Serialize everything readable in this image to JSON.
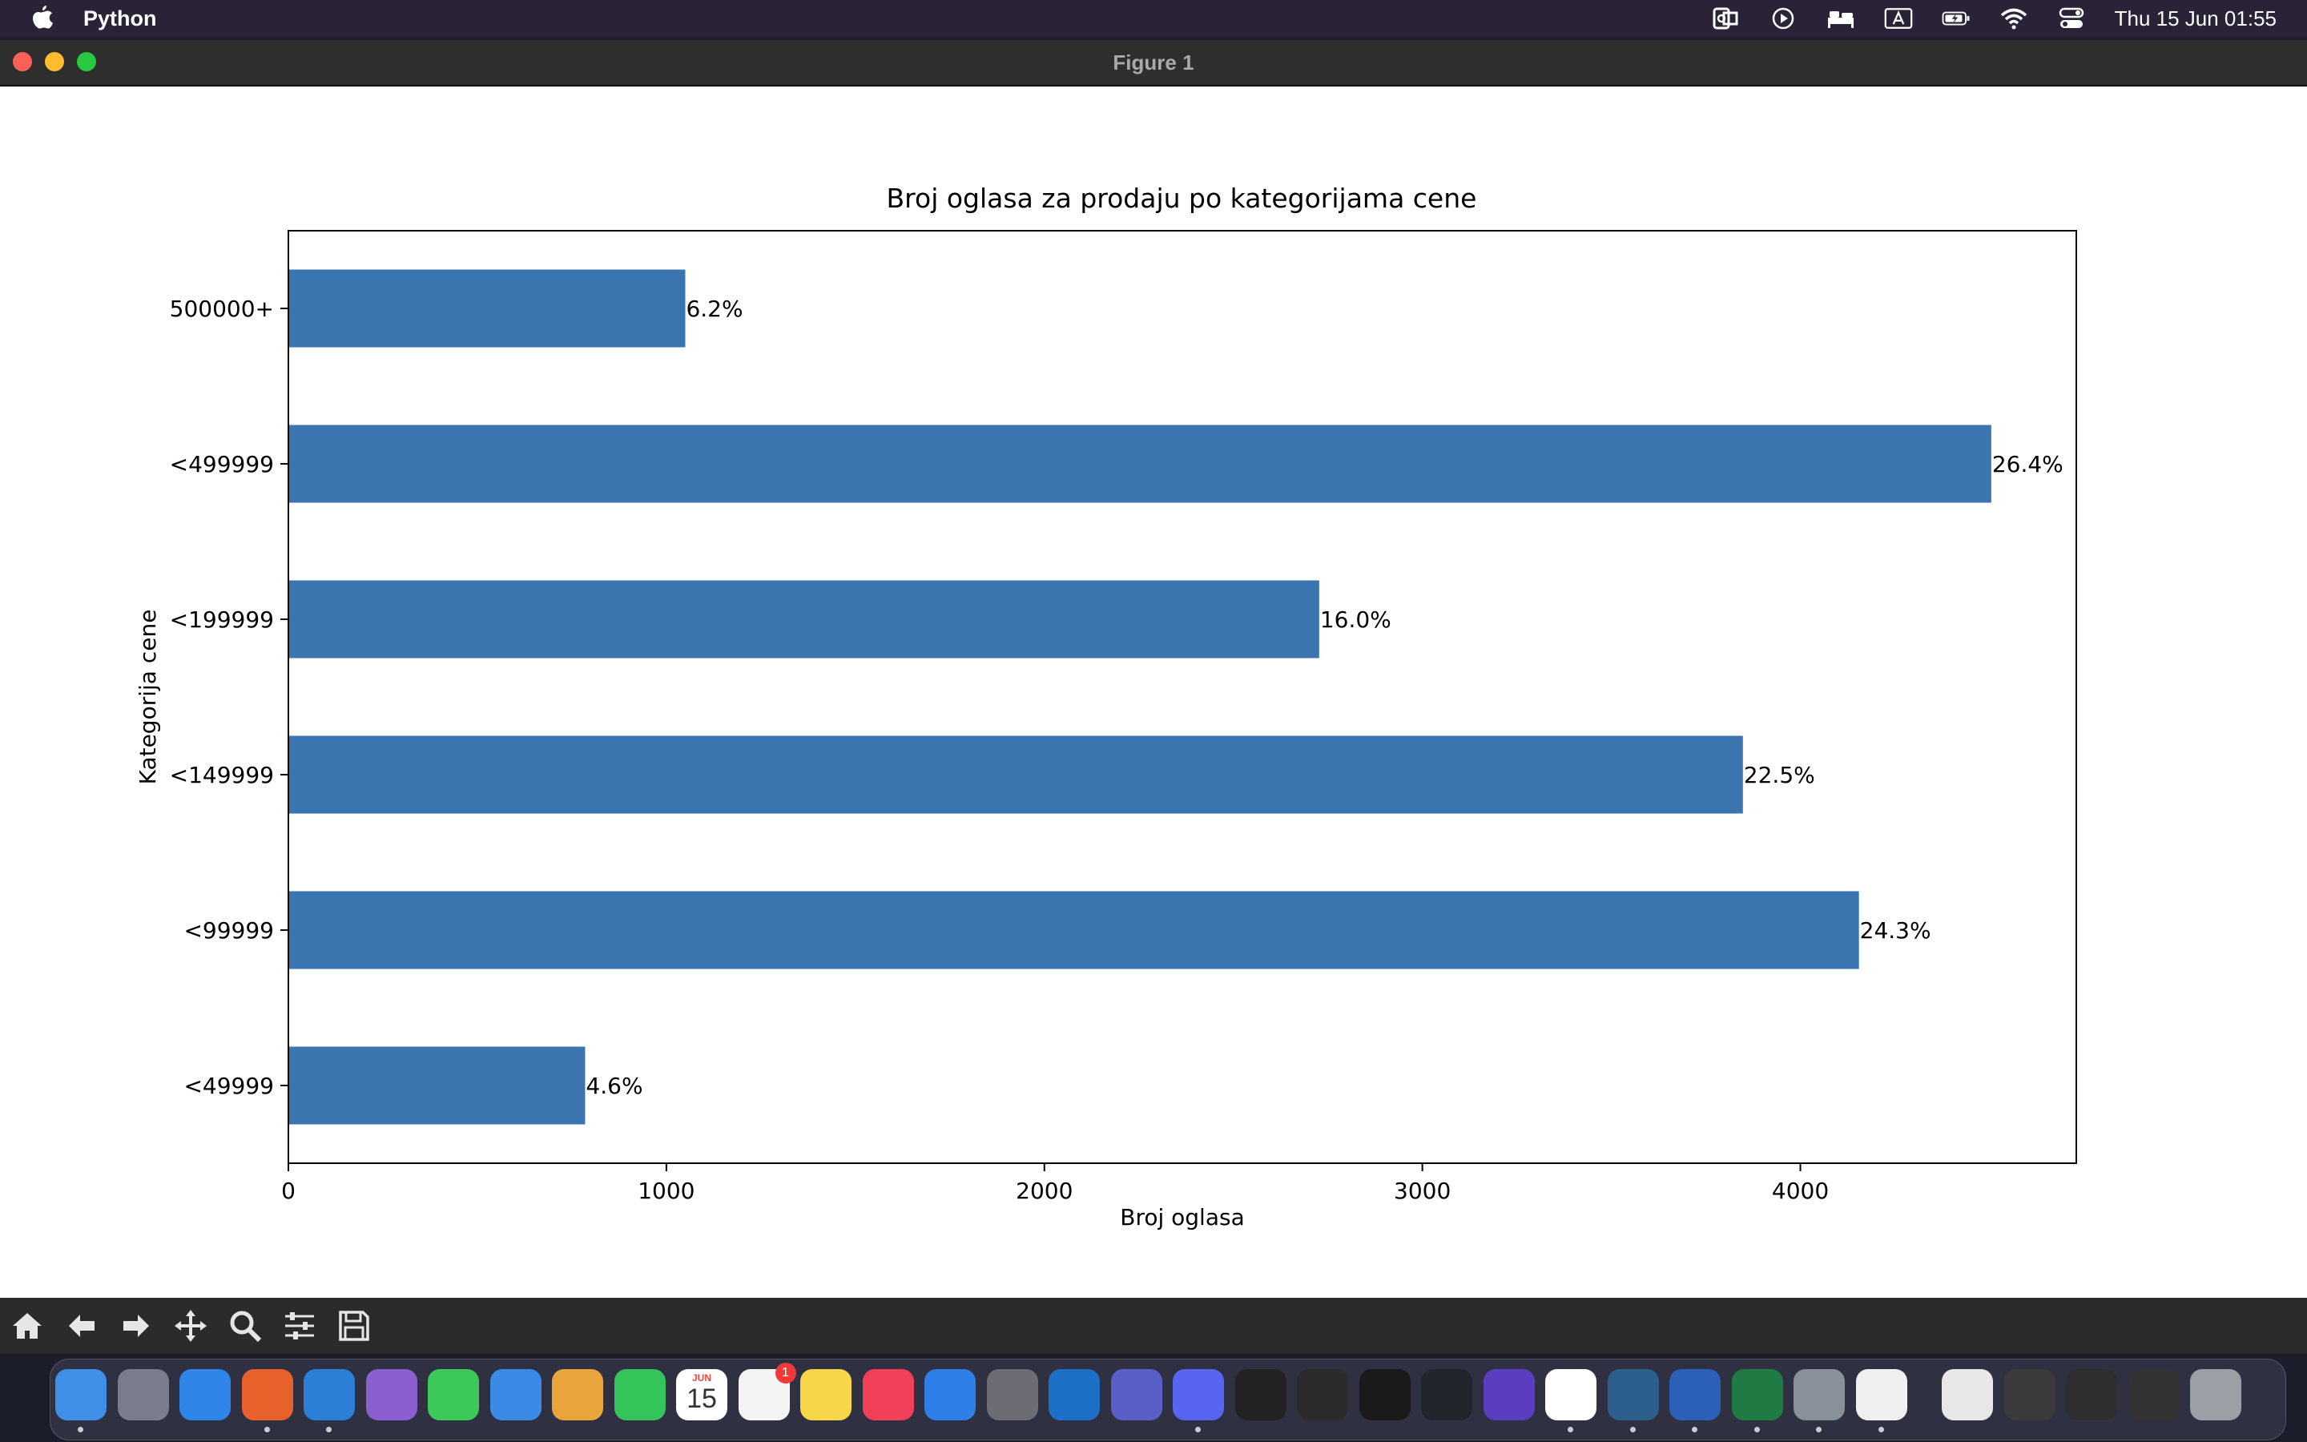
{
  "menubar": {
    "app_name": "Python",
    "clock": "Thu 15 Jun  01:55",
    "status_icons": [
      "outlook-status-icon",
      "play-icon",
      "bed-icon",
      "keyboard-input-icon",
      "battery-icon",
      "wifi-icon",
      "control-center-icon"
    ]
  },
  "window": {
    "title": "Figure 1"
  },
  "toolbar": {
    "buttons": [
      "home-icon",
      "back-arrow-icon",
      "forward-arrow-icon",
      "pan-icon",
      "zoom-icon",
      "configure-subplots-icon",
      "save-icon"
    ]
  },
  "dock": {
    "badge_reminders": "1",
    "calendar_month": "JUN",
    "calendar_day": "15",
    "apps": [
      "finder",
      "launchpad",
      "safari",
      "firefox",
      "vscode",
      "visual-studio",
      "messages",
      "mail",
      "photos",
      "facetime",
      "calendar",
      "reminders",
      "notes",
      "music",
      "app-store",
      "system-settings",
      "outlook",
      "teams",
      "discord",
      "terminal",
      "activity-monitor",
      "intellij",
      "pycharm",
      "devtools",
      "slack",
      "mysql-workbench",
      "word",
      "excel",
      "preview",
      "pinwheel",
      "document",
      "screenshot-1",
      "screenshot-2",
      "screenshot-3",
      "trash"
    ]
  },
  "chart_data": {
    "type": "bar",
    "orientation": "horizontal",
    "title": "Broj oglasa za prodaju po kategorijama cene",
    "xlabel": "Broj oglasa",
    "ylabel": "Kategorija cene",
    "categories": [
      "<49999",
      "<99999",
      "<149999",
      "<199999",
      "<499999",
      "500000+"
    ],
    "values": [
      785,
      4155,
      3848,
      2727,
      4505,
      1050
    ],
    "data_labels": [
      "4.6%",
      "24.3%",
      "22.5%",
      "16.0%",
      "26.4%",
      "6.2%"
    ],
    "xlim": [
      0,
      4730
    ],
    "xticks": [
      0,
      1000,
      2000,
      3000,
      4000
    ],
    "xtick_labels": [
      "0",
      "1000",
      "2000",
      "3000",
      "4000"
    ],
    "grid": false,
    "bar_color": "#3a75af"
  }
}
